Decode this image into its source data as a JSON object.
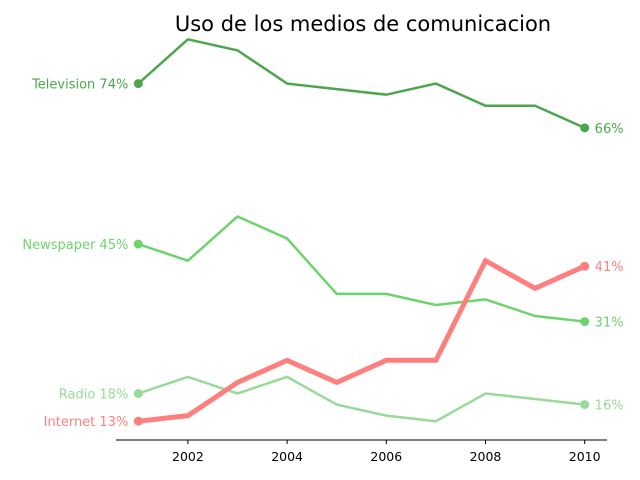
{
  "chart_data": {
    "type": "line",
    "title": "Uso de los medios de comunicacion",
    "xlabel": "",
    "ylabel": "",
    "x": [
      2001,
      2002,
      2003,
      2004,
      2005,
      2006,
      2007,
      2008,
      2009,
      2010
    ],
    "xlim": [
      2000.55,
      2010.45
    ],
    "ylim": [
      9.6,
      82.6
    ],
    "x_ticks": [
      2002,
      2004,
      2006,
      2008,
      2010
    ],
    "x_tick_labels": [
      "2002",
      "2004",
      "2006",
      "2008",
      "2010"
    ],
    "y_axis_visible": false,
    "grid": false,
    "legend": "none",
    "series": [
      {
        "name": "Television",
        "color": "#4da64d",
        "emphasis": false,
        "values": [
          74,
          82,
          80,
          74,
          73,
          72,
          74,
          70,
          70,
          66
        ],
        "start_label": "Television 74%",
        "end_label": "66%"
      },
      {
        "name": "Newspaper",
        "color": "#6dd46d",
        "emphasis": false,
        "values": [
          45,
          42,
          50,
          46,
          36,
          36,
          34,
          35,
          32,
          31
        ],
        "start_label": "Newspaper 45%",
        "end_label": "31%"
      },
      {
        "name": "Radio",
        "color": "#98db98",
        "emphasis": false,
        "values": [
          18,
          21,
          18,
          21,
          16,
          14,
          13,
          18,
          17,
          16
        ],
        "start_label": "Radio 18%",
        "end_label": "16%"
      },
      {
        "name": "Internet",
        "color": "#ff7f7f",
        "emphasis": true,
        "values": [
          13,
          14,
          20,
          24,
          20,
          24,
          24,
          42,
          37,
          41
        ],
        "start_label": "Internet 13%",
        "end_label": "41%"
      }
    ]
  }
}
